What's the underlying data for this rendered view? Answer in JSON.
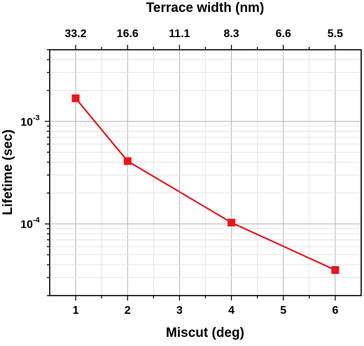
{
  "chart_data": {
    "type": "line",
    "xlabel": "Miscut (deg)",
    "ylabel": "Lifetime (sec)",
    "top_xlabel": "Terrace width (nm)",
    "x_ticks": [
      1,
      2,
      3,
      4,
      5,
      6
    ],
    "top_ticks": [
      "33.2",
      "16.6",
      "11.1",
      "8.3",
      "6.6",
      "5.5"
    ],
    "y_scale": "log",
    "y_ticks": [
      {
        "value": 0.001,
        "base": "10",
        "exp": "-3"
      },
      {
        "value": 0.0001,
        "base": "10",
        "exp": "-4"
      }
    ],
    "xlim": [
      0.5,
      6.5
    ],
    "ylim": [
      2e-05,
      0.005
    ],
    "grid": true,
    "series": [
      {
        "color": "#e8161b",
        "marker": "square",
        "x": [
          1,
          2,
          4,
          6
        ],
        "y": [
          0.00168,
          0.00041,
          0.000103,
          3.55e-05
        ]
      }
    ]
  }
}
